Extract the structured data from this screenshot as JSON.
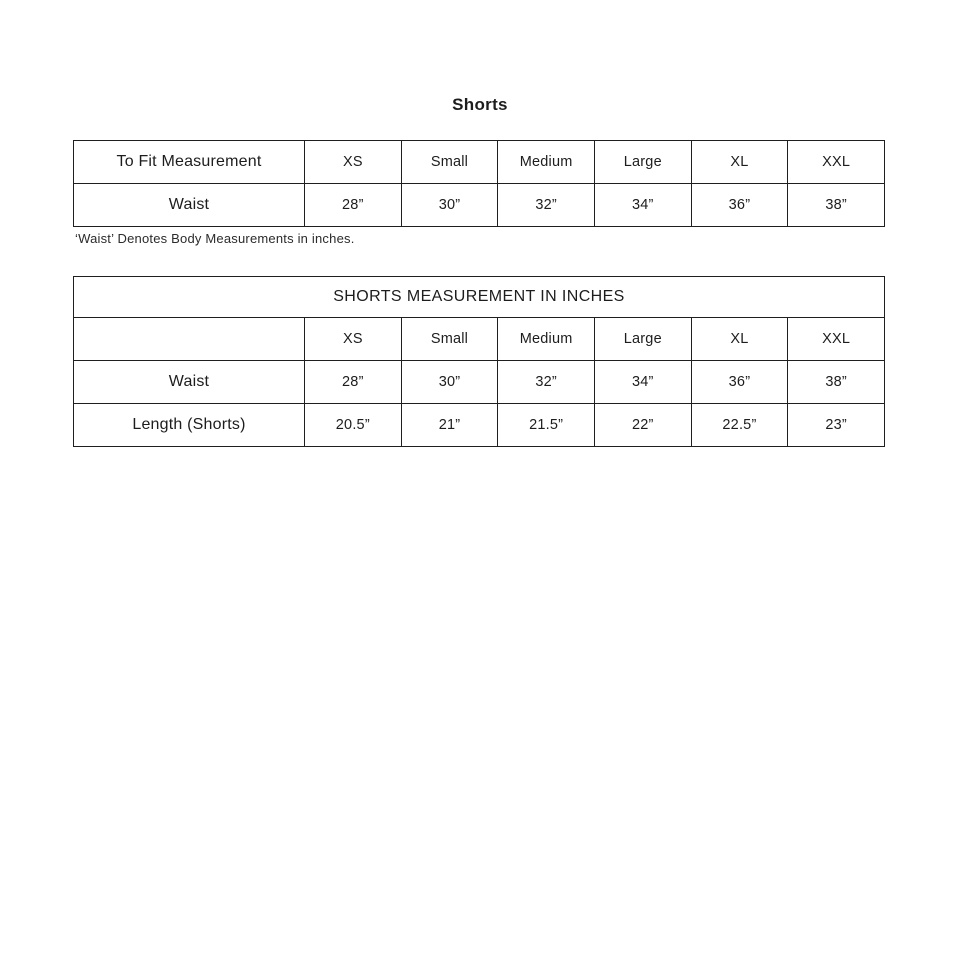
{
  "page": {
    "title": "Shorts",
    "footnote": "‘Waist’ Denotes Body Measurements in inches."
  },
  "fit_table": {
    "header_label": "To Fit Measurement",
    "sizes": [
      "XS",
      "Small",
      "Medium",
      "Large",
      "XL",
      "XXL"
    ],
    "waist_row": {
      "label": "Waist",
      "values": [
        "28”",
        "30”",
        "32”",
        "34”",
        "36”",
        "38”"
      ]
    }
  },
  "measurement_table": {
    "title": "SHORTS MEASUREMENT IN INCHES",
    "sizes": [
      "XS",
      "Small",
      "Medium",
      "Large",
      "XL",
      "XXL"
    ],
    "waist_row": {
      "label": "Waist",
      "values": [
        "28”",
        "30”",
        "32”",
        "34”",
        "36”",
        "38”"
      ]
    },
    "length_row": {
      "label": "Length (Shorts)",
      "values": [
        "20.5”",
        "21”",
        "21.5”",
        "22”",
        "22.5”",
        "23”"
      ]
    }
  }
}
